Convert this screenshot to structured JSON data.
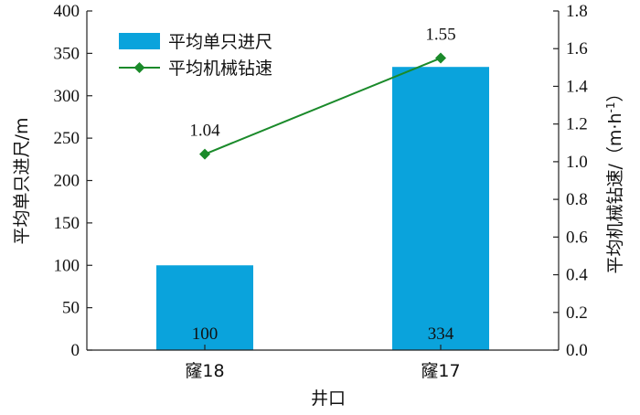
{
  "chart_data": {
    "type": "bar",
    "categories": [
      "窿18",
      "窿17"
    ],
    "series": [
      {
        "name": "平均单只进尺",
        "axis": "left",
        "kind": "bar",
        "values": [
          100,
          334
        ],
        "color": "#0aa3dc"
      },
      {
        "name": "平均机械钻速",
        "axis": "right",
        "kind": "line",
        "values": [
          1.04,
          1.55
        ],
        "color": "#1a8a2a"
      }
    ],
    "xlabel": "井口",
    "ylabel": "平均单只进尺/m",
    "y2label_main": "平均机械钻速/（m·h",
    "y2label_sup": "-1",
    "y2label_end": "）",
    "ylim": [
      0,
      400
    ],
    "y2lim": [
      0,
      1.8
    ],
    "yticks": [
      "0",
      "50",
      "100",
      "150",
      "200",
      "250",
      "300",
      "350",
      "400"
    ],
    "y2ticks": [
      "0.0",
      "0.2",
      "0.4",
      "0.6",
      "0.8",
      "1.0",
      "1.2",
      "1.4",
      "1.6",
      "1.8"
    ],
    "bar_labels": [
      "100",
      "334"
    ],
    "line_labels": [
      "1.04",
      "1.55"
    ],
    "legend_position": "top-left",
    "grid": false
  }
}
